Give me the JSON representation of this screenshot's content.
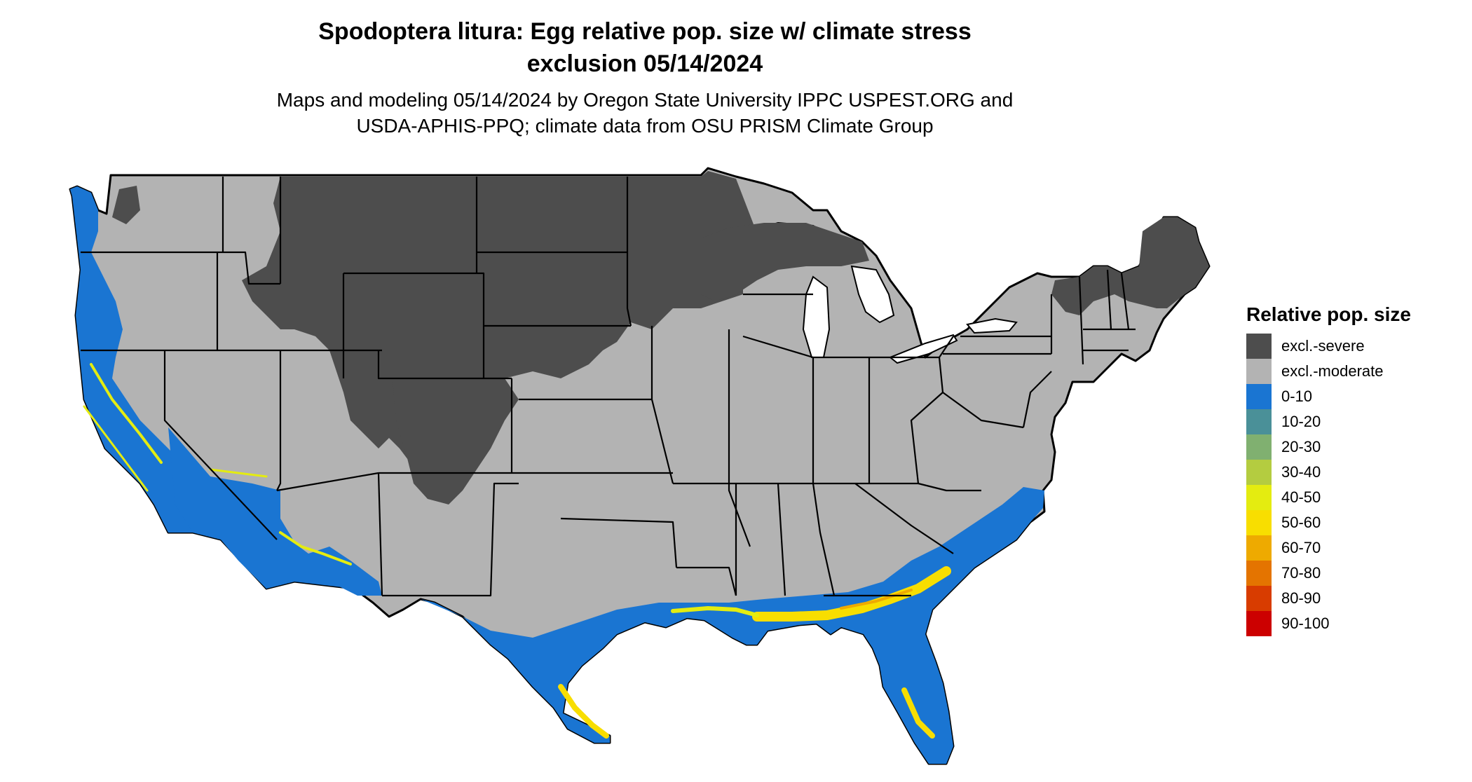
{
  "title_line1": "Spodoptera litura: Egg relative pop. size w/ climate stress",
  "title_line2": "exclusion 05/14/2024",
  "subtitle_line1": "Maps and modeling 05/14/2024 by Oregon State University IPPC USPEST.ORG and",
  "subtitle_line2": "USDA-APHIS-PPQ; climate data from OSU PRISM Climate Group",
  "legend": {
    "title": "Relative pop. size",
    "items": [
      {
        "label": "excl.-severe",
        "color": "#4d4d4d"
      },
      {
        "label": "excl.-moderate",
        "color": "#b3b3b3"
      },
      {
        "label": "0-10",
        "color": "#1a75d2"
      },
      {
        "label": "10-20",
        "color": "#4a9098"
      },
      {
        "label": "20-30",
        "color": "#80b070"
      },
      {
        "label": "30-40",
        "color": "#b4cc40"
      },
      {
        "label": "40-50",
        "color": "#e4ec10"
      },
      {
        "label": "50-60",
        "color": "#f8de00"
      },
      {
        "label": "60-70",
        "color": "#eeaa00"
      },
      {
        "label": "70-80",
        "color": "#e47400"
      },
      {
        "label": "80-90",
        "color": "#d83c00"
      },
      {
        "label": "90-100",
        "color": "#cc0000"
      }
    ]
  }
}
